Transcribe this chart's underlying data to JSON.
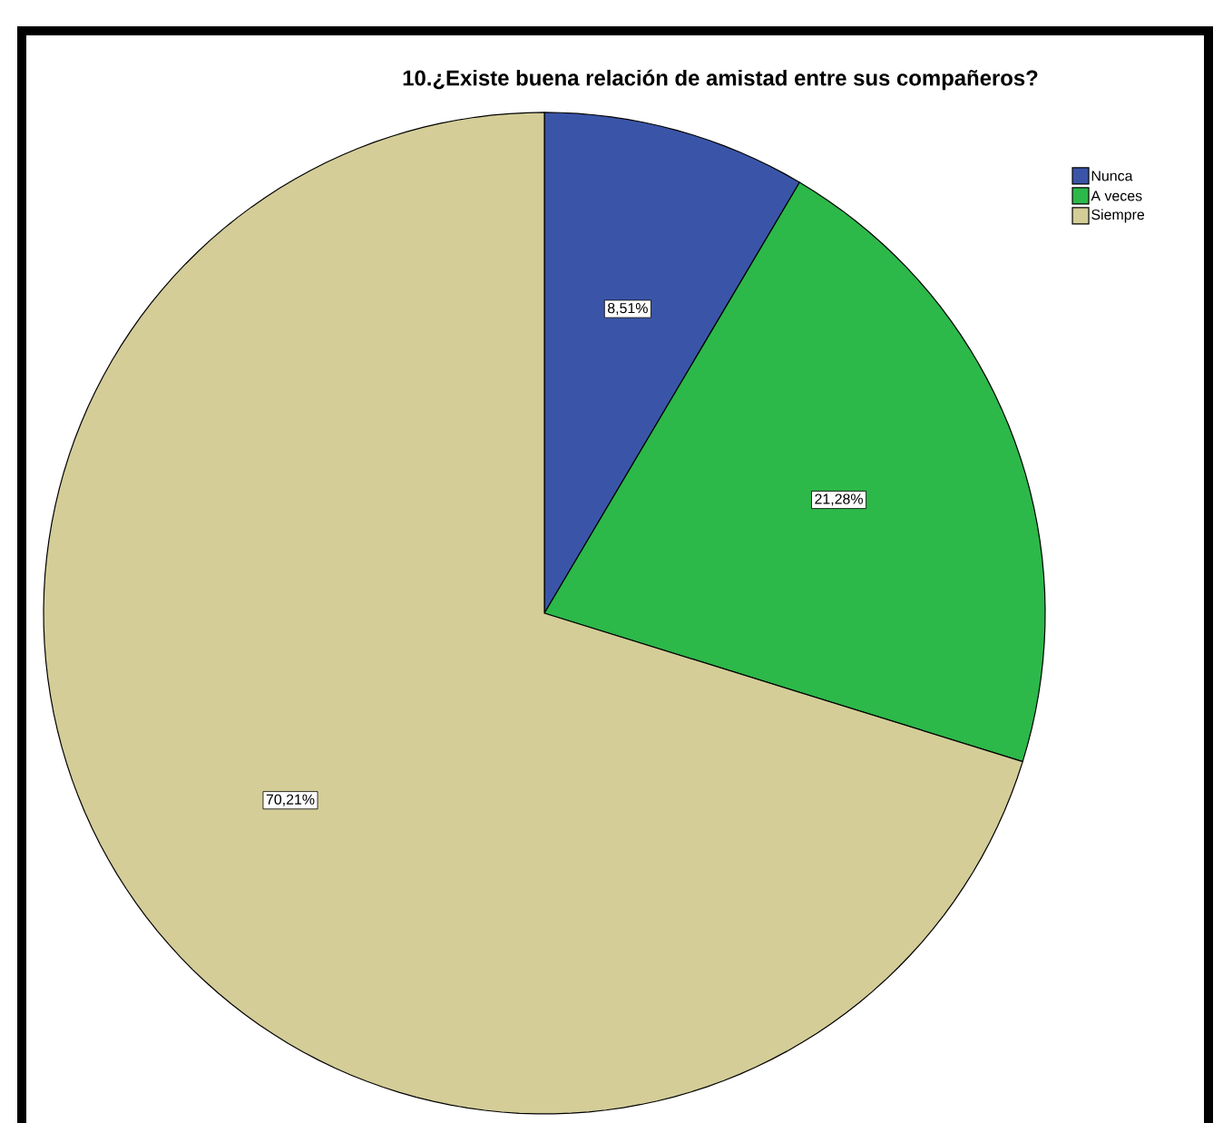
{
  "chart_data": {
    "type": "pie",
    "title": "10.¿Existe buena relación de amistad entre sus compañeros?",
    "categories": [
      "Nunca",
      "A veces",
      "Siempre"
    ],
    "values": [
      8.51,
      21.28,
      70.21
    ],
    "value_labels": [
      "8,51%",
      "21,28%",
      "70,21%"
    ],
    "colors": [
      "#3a55a8",
      "#2db84a",
      "#d4cd98"
    ],
    "legend": "top right"
  }
}
